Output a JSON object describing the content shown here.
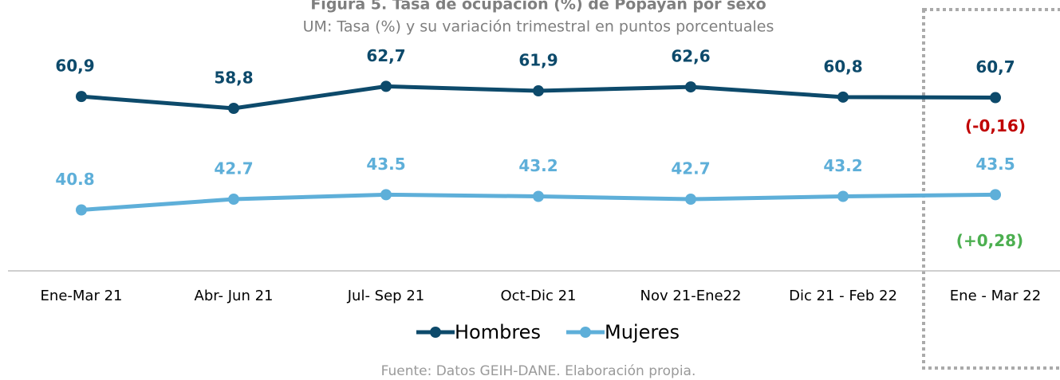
{
  "chart_data": {
    "type": "line",
    "title": "Figura 5. Tasa de ocupación (%) de Popayán por sexo",
    "subtitle": "UM: Tasa (%) y su variación trimestral en puntos porcentuales",
    "categories": [
      "Ene-Mar 21",
      "Abr- Jun 21",
      "Jul- Sep 21",
      "Oct-Dic 21",
      "Nov 21-Ene22",
      "Dic 21 - Feb 22",
      "Ene - Mar 22"
    ],
    "series": [
      {
        "name": "Hombres",
        "color": "#0d4a6b",
        "values": [
          60.9,
          58.8,
          62.7,
          61.9,
          62.6,
          60.8,
          60.7
        ],
        "value_labels": [
          "60,9",
          "58,8",
          "62,7",
          "61,9",
          "62,6",
          "60,8",
          "60,7"
        ]
      },
      {
        "name": "Mujeres",
        "color": "#5eafd9",
        "values": [
          40.8,
          42.7,
          43.5,
          43.2,
          42.7,
          43.2,
          43.5
        ],
        "value_labels": [
          "40.8",
          "42.7",
          "43.5",
          "43.2",
          "42.7",
          "43.2",
          "43.5"
        ]
      }
    ],
    "annotations": [
      {
        "text": "(-0,16)",
        "color": "#c00000"
      },
      {
        "text": "(+0,28)",
        "color": "#4caf50"
      }
    ],
    "ylim": [
      30,
      78
    ],
    "legend": "bottom",
    "source": "Fuente: Datos GEIH-DANE. Elaboración propia."
  }
}
